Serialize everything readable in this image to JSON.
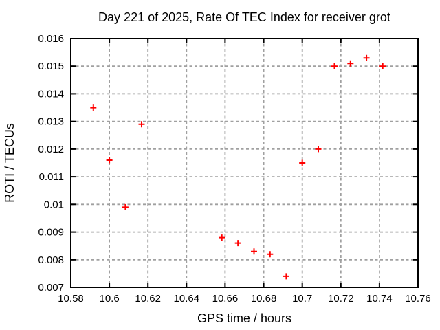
{
  "chart_data": {
    "type": "scatter",
    "title": "Day 221 of 2025, Rate Of TEC Index for receiver grot",
    "xlabel": "GPS time / hours",
    "ylabel": "ROTI / TECUs",
    "xlim": [
      10.58,
      10.76
    ],
    "ylim": [
      0.007,
      0.016
    ],
    "grid": "dashed",
    "legend": "none",
    "marker": "plus",
    "xticks": {
      "values": [
        10.58,
        10.6,
        10.62,
        10.64,
        10.66,
        10.68,
        10.7,
        10.72,
        10.74,
        10.76
      ],
      "labels": [
        "10.58",
        "10.6",
        "10.62",
        "10.64",
        "10.66",
        "10.68",
        "10.7",
        "10.72",
        "10.74",
        "10.76"
      ]
    },
    "yticks": {
      "values": [
        0.007,
        0.008,
        0.009,
        0.01,
        0.011,
        0.012,
        0.013,
        0.014,
        0.015,
        0.016
      ],
      "labels": [
        "0.007",
        "0.008",
        "0.009",
        "0.01",
        "0.011",
        "0.012",
        "0.013",
        "0.014",
        "0.015",
        "0.016"
      ]
    },
    "series": [
      {
        "name": "ROTI",
        "color": "#ff0000",
        "points": [
          [
            10.5917,
            0.0135
          ],
          [
            10.6,
            0.0116
          ],
          [
            10.6083,
            0.0099
          ],
          [
            10.6167,
            0.0129
          ],
          [
            10.6583,
            0.0088
          ],
          [
            10.6667,
            0.0086
          ],
          [
            10.675,
            0.0083
          ],
          [
            10.6833,
            0.0082
          ],
          [
            10.6917,
            0.0074
          ],
          [
            10.7,
            0.0115
          ],
          [
            10.7083,
            0.012
          ],
          [
            10.7167,
            0.015
          ],
          [
            10.725,
            0.0151
          ],
          [
            10.7333,
            0.0153
          ],
          [
            10.7417,
            0.015
          ]
        ]
      }
    ]
  },
  "colors": {
    "background": "#ffffff",
    "frame": "#000000",
    "grid": "#a0a0a0",
    "marker": "#ff0000",
    "text": "#000000"
  }
}
